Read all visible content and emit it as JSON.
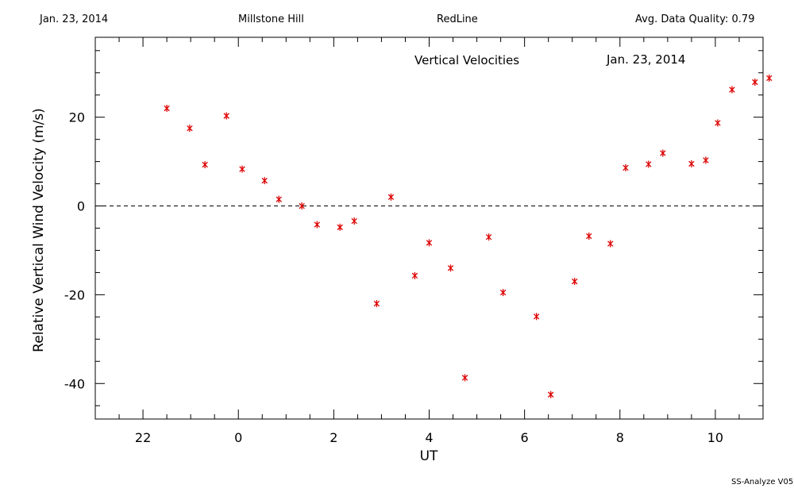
{
  "header": {
    "date": "Jan. 23, 2014",
    "site": "Millstone Hill",
    "filter": "RedLine",
    "quality_label": "Avg. Data Quality: 0.79"
  },
  "footer": {
    "software": "SS-Analyze V05"
  },
  "chart_data": {
    "type": "scatter",
    "title": "Vertical Velocities",
    "subtitle": "Jan. 23, 2014",
    "xlabel": "UT",
    "ylabel": "Relative Vertical Wind Velocity (m/s)",
    "xlim": [
      21.0,
      35.0
    ],
    "ylim": [
      -48,
      38
    ],
    "x_ticks": [
      22,
      24,
      26,
      28,
      30,
      32,
      34
    ],
    "x_tick_labels": [
      "22",
      "0",
      "2",
      "4",
      "6",
      "8",
      "10"
    ],
    "y_ticks": [
      -40,
      -20,
      0,
      20
    ],
    "y_tick_labels": [
      "-40",
      "-20",
      "0",
      "20"
    ],
    "zero_line": true,
    "grid": false,
    "marker_color": "#dd0000",
    "series": [
      {
        "x": [
          22.5,
          22.98,
          23.3,
          23.75,
          24.08,
          24.55,
          24.85,
          25.33,
          25.65,
          26.13,
          26.43,
          26.9,
          27.2,
          27.7,
          28.0,
          28.45,
          28.75,
          29.25,
          29.55,
          30.25,
          30.55,
          31.05,
          31.35,
          31.8,
          32.12,
          32.6,
          32.9,
          33.5,
          33.8,
          34.05,
          34.35,
          34.83,
          35.13
        ],
        "y": [
          22.0,
          17.5,
          9.3,
          20.3,
          8.3,
          5.7,
          1.5,
          0.0,
          -4.2,
          -4.8,
          -3.4,
          -22.0,
          2.0,
          -15.7,
          -8.3,
          -14.0,
          -38.7,
          -7.0,
          -19.5,
          -24.9,
          -42.5,
          -17.0,
          -6.8,
          -8.5,
          8.6,
          9.4,
          11.9,
          9.5,
          10.3,
          18.7,
          26.2,
          27.9,
          28.8
        ]
      }
    ]
  }
}
